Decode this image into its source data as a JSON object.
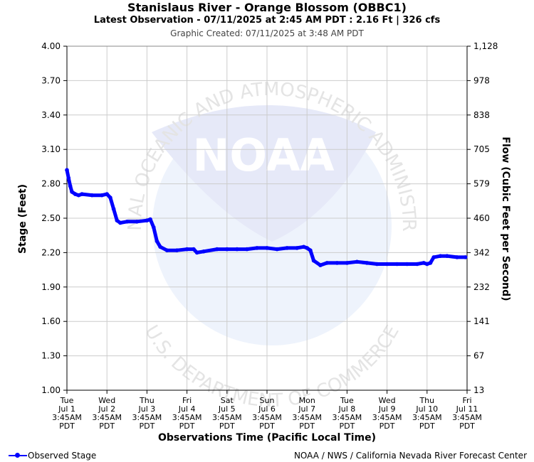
{
  "header": {
    "title": "Stanislaus River - Orange Blossom (OBBC1)",
    "subtitle": "Latest Observation - 07/11/2025 at 2:45 AM PDT : 2.16 Ft | 326 cfs",
    "created": "Graphic Created: 07/11/2025 at 3:48 AM PDT"
  },
  "watermark": {
    "logo_text": "NOAA",
    "ring_text_top": "NATIONAL OCEANIC AND ATMOSPHERIC ADMINISTRATION",
    "ring_text_bottom": "U.S. DEPARTMENT OF COMMERCE"
  },
  "legend": {
    "label": "Observed Stage"
  },
  "footer": {
    "credit": "NOAA / NWS / California Nevada River Forecast Center"
  },
  "colors": {
    "series": "#0000ff",
    "grid": "#cccccc",
    "watermark": "#e8ebf8"
  },
  "chart_data": {
    "type": "line",
    "xlabel": "Observations Time (Pacific Local Time)",
    "ylabel": "Stage (Feet)",
    "y2label": "Flow (Cubic Feet per Second)",
    "ylim": [
      1.0,
      4.0
    ],
    "xlim": [
      "07/01/2025 03:45",
      "07/11/2025 03:45"
    ],
    "grid": true,
    "legend_position": "bottom-left",
    "y_ticks": [
      "1.00",
      "1.30",
      "1.60",
      "1.90",
      "2.20",
      "2.50",
      "2.80",
      "3.10",
      "3.40",
      "3.70",
      "4.00"
    ],
    "y2_ticks": [
      "13",
      "67",
      "141",
      "232",
      "342",
      "460",
      "579",
      "705",
      "838",
      "978",
      "1,128"
    ],
    "x_ticks": [
      [
        "Tue",
        "Jul 1",
        "3:45AM",
        "PDT"
      ],
      [
        "Wed",
        "Jul 2",
        "3:45AM",
        "PDT"
      ],
      [
        "Thu",
        "Jul 3",
        "3:45AM",
        "PDT"
      ],
      [
        "Fri",
        "Jul 4",
        "3:45AM",
        "PDT"
      ],
      [
        "Sat",
        "Jul 5",
        "3:45AM",
        "PDT"
      ],
      [
        "Sun",
        "Jul 6",
        "3:45AM",
        "PDT"
      ],
      [
        "Mon",
        "Jul 7",
        "3:45AM",
        "PDT"
      ],
      [
        "Tue",
        "Jul 8",
        "3:45AM",
        "PDT"
      ],
      [
        "Wed",
        "Jul 9",
        "3:45AM",
        "PDT"
      ],
      [
        "Thu",
        "Jul 10",
        "3:45AM",
        "PDT"
      ],
      [
        "Fri",
        "Jul 11",
        "3:45AM",
        "PDT"
      ]
    ],
    "series": [
      {
        "name": "Observed Stage",
        "x": [
          "07/01/2025 03:45",
          "07/01/2025 04:45",
          "07/01/2025 05:45",
          "07/01/2025 06:45",
          "07/01/2025 08:45",
          "07/01/2025 10:45",
          "07/01/2025 12:45",
          "07/01/2025 18:45",
          "07/02/2025 00:45",
          "07/02/2025 03:45",
          "07/02/2025 05:45",
          "07/02/2025 07:45",
          "07/02/2025 09:45",
          "07/02/2025 11:45",
          "07/02/2025 15:45",
          "07/02/2025 21:45",
          "07/03/2025 03:45",
          "07/03/2025 05:45",
          "07/03/2025 07:45",
          "07/03/2025 09:45",
          "07/03/2025 11:45",
          "07/03/2025 15:45",
          "07/03/2025 21:45",
          "07/04/2025 03:45",
          "07/04/2025 07:45",
          "07/04/2025 09:45",
          "07/04/2025 13:45",
          "07/04/2025 21:45",
          "07/05/2025 03:45",
          "07/05/2025 09:45",
          "07/05/2025 15:45",
          "07/05/2025 21:45",
          "07/06/2025 03:45",
          "07/06/2025 09:45",
          "07/06/2025 15:45",
          "07/06/2025 21:45",
          "07/07/2025 01:45",
          "07/07/2025 03:45",
          "07/07/2025 05:45",
          "07/07/2025 07:45",
          "07/07/2025 11:45",
          "07/07/2025 15:45",
          "07/07/2025 21:45",
          "07/08/2025 03:45",
          "07/08/2025 09:45",
          "07/08/2025 15:45",
          "07/08/2025 21:45",
          "07/09/2025 03:45",
          "07/09/2025 09:45",
          "07/09/2025 15:45",
          "07/09/2025 21:45",
          "07/10/2025 01:45",
          "07/10/2025 03:45",
          "07/10/2025 05:45",
          "07/10/2025 07:45",
          "07/10/2025 11:45",
          "07/10/2025 15:45",
          "07/10/2025 21:45",
          "07/11/2025 02:45"
        ],
        "values": [
          2.92,
          2.85,
          2.78,
          2.73,
          2.71,
          2.7,
          2.71,
          2.7,
          2.7,
          2.71,
          2.68,
          2.58,
          2.48,
          2.46,
          2.47,
          2.47,
          2.48,
          2.49,
          2.42,
          2.3,
          2.25,
          2.22,
          2.22,
          2.23,
          2.23,
          2.2,
          2.21,
          2.23,
          2.23,
          2.23,
          2.23,
          2.24,
          2.24,
          2.23,
          2.24,
          2.24,
          2.25,
          2.24,
          2.22,
          2.13,
          2.09,
          2.11,
          2.11,
          2.11,
          2.12,
          2.11,
          2.1,
          2.1,
          2.1,
          2.1,
          2.1,
          2.11,
          2.1,
          2.11,
          2.16,
          2.17,
          2.17,
          2.16,
          2.16
        ]
      }
    ]
  }
}
